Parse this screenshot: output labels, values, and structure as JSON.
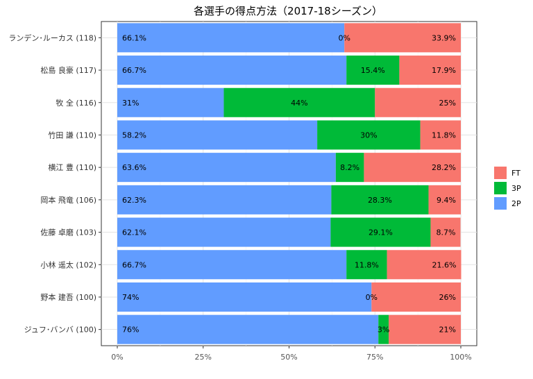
{
  "chart_data": {
    "type": "bar",
    "orientation": "horizontal",
    "stacked": "percent",
    "title": "各選手の得点方法（2017-18シーズン）",
    "xlabel": "",
    "ylabel": "",
    "xlim": [
      0,
      100
    ],
    "x_ticks": [
      "0%",
      "25%",
      "50%",
      "75%",
      "100%"
    ],
    "grid": true,
    "legend_position": "right",
    "legend": [
      {
        "name": "FT",
        "color": "#F8766D"
      },
      {
        "name": "3P",
        "color": "#00BA38"
      },
      {
        "name": "2P",
        "color": "#619CFF"
      }
    ],
    "categories": [
      "ランデン･ルーカス (118)",
      "松島 良豪 (117)",
      "牧 全 (116)",
      "竹田 謙 (110)",
      "横江 豊 (110)",
      "岡本 飛竜 (106)",
      "佐藤 卓磨 (103)",
      "小林 遥太 (102)",
      "野本 建吾 (100)",
      "ジュフ･バンバ (100)"
    ],
    "series": [
      {
        "name": "2P",
        "color": "#619CFF",
        "values": [
          66.1,
          66.7,
          31,
          58.2,
          63.6,
          62.3,
          62.1,
          66.7,
          74,
          76
        ],
        "labels": [
          "66.1%",
          "66.7%",
          "31%",
          "58.2%",
          "63.6%",
          "62.3%",
          "62.1%",
          "66.7%",
          "74%",
          "76%"
        ]
      },
      {
        "name": "3P",
        "color": "#00BA38",
        "values": [
          0,
          15.4,
          44,
          30,
          8.2,
          28.3,
          29.1,
          11.8,
          0,
          3
        ],
        "labels": [
          "0%",
          "15.4%",
          "44%",
          "30%",
          "8.2%",
          "28.3%",
          "29.1%",
          "11.8%",
          "0%",
          "3%"
        ]
      },
      {
        "name": "FT",
        "color": "#F8766D",
        "values": [
          33.9,
          17.9,
          25,
          11.8,
          28.2,
          9.4,
          8.7,
          21.6,
          26,
          21
        ],
        "labels": [
          "33.9%",
          "17.9%",
          "25%",
          "11.8%",
          "28.2%",
          "9.4%",
          "8.7%",
          "21.6%",
          "26%",
          "21%"
        ]
      }
    ]
  }
}
